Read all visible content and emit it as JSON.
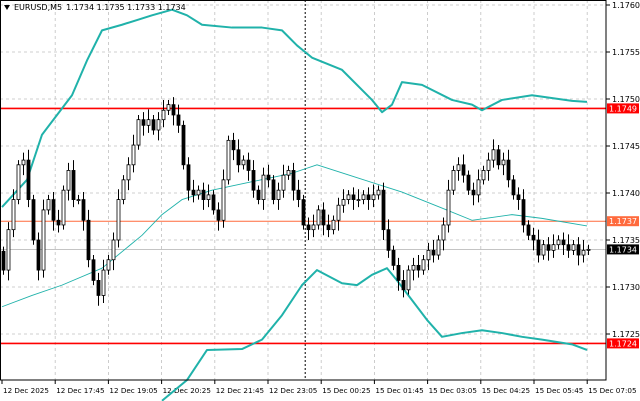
{
  "header": {
    "symbol": "EURUSD,M5",
    "ohlc": "1.1734 1.1735 1.1733 1.1734"
  },
  "colors": {
    "band": "#20b2aa",
    "level_red": "#ff0000",
    "level_orange": "#ff6a3d",
    "current_price": "#000000",
    "grid": "#c0c0c0"
  },
  "chart_data": {
    "type": "candlestick",
    "symbol": "EURUSD",
    "timeframe": "M5",
    "ylim": [
      1.172,
      1.1761
    ],
    "y_ticks": [
      "1.1760",
      "1.1755",
      "1.1750",
      "1.1745",
      "1.1740",
      "1.1735",
      "1.1730",
      "1.1725"
    ],
    "x_ticks": [
      "12 Dec 2025",
      "12 Dec 17:45",
      "12 Dec 19:05",
      "12 Dec 20:25",
      "12 Dec 21:45",
      "12 Dec 23:05",
      "15 Dec 00:25",
      "15 Dec 01:45",
      "15 Dec 03:05",
      "15 Dec 04:25",
      "15 Dec 05:45",
      "15 Dec 07:05"
    ],
    "grid": true,
    "closes": [
      1.17318,
      1.17361,
      1.17393,
      1.1743,
      1.17435,
      1.17393,
      1.1735,
      1.17318,
      1.17382,
      1.17393,
      1.17371,
      1.17366,
      1.17403,
      1.17424,
      1.17393,
      1.17393,
      1.17371,
      1.17329,
      1.17307,
      1.17291,
      1.17318,
      1.17329,
      1.1735,
      1.17393,
      1.17414,
      1.1743,
      1.17451,
      1.17478,
      1.17472,
      1.17478,
      1.17467,
      1.17478,
      1.17488,
      1.17494,
      1.17483,
      1.17472,
      1.1743,
      1.17403,
      1.17398,
      1.17403,
      1.17393,
      1.17398,
      1.17382,
      1.17371,
      1.17414,
      1.17456,
      1.17446,
      1.1743,
      1.17435,
      1.17424,
      1.17403,
      1.17393,
      1.17419,
      1.17414,
      1.17393,
      1.17403,
      1.17419,
      1.17424,
      1.17403,
      1.17393,
      1.17366,
      1.17361,
      1.17366,
      1.17382,
      1.17366,
      1.17361,
      1.17371,
      1.17387,
      1.17393,
      1.17398,
      1.17393,
      1.17393,
      1.17398,
      1.17393,
      1.17398,
      1.17403,
      1.17361,
      1.17339,
      1.17323,
      1.17307,
      1.17297,
      1.17318,
      1.17323,
      1.17318,
      1.17329,
      1.17339,
      1.17334,
      1.1735,
      1.17366,
      1.17403,
      1.17424,
      1.1743,
      1.17419,
      1.17403,
      1.17398,
      1.17414,
      1.17424,
      1.17435,
      1.17446,
      1.1743,
      1.17435,
      1.17414,
      1.17398,
      1.17393,
      1.17366,
      1.17355,
      1.1735,
      1.17334,
      1.17345,
      1.17339,
      1.17345,
      1.1735,
      1.17345,
      1.17339,
      1.17345,
      1.17334,
      1.17339,
      1.1734
    ],
    "bollinger": {
      "upper": [
        [
          0,
          1.17385
        ],
        [
          5,
          1.17414
        ],
        [
          8,
          1.17462
        ],
        [
          11,
          1.17483
        ],
        [
          14,
          1.17504
        ],
        [
          17,
          1.17541
        ],
        [
          20,
          1.17573
        ],
        [
          24,
          1.17579
        ],
        [
          27,
          1.17584
        ],
        [
          30,
          1.17589
        ],
        [
          34,
          1.17595
        ],
        [
          37,
          1.17589
        ],
        [
          40,
          1.17579
        ],
        [
          46,
          1.17576
        ],
        [
          52,
          1.17576
        ],
        [
          56,
          1.17573
        ],
        [
          59,
          1.17557
        ],
        [
          62,
          1.17544
        ],
        [
          68,
          1.17531
        ],
        [
          74,
          1.17499
        ],
        [
          76,
          1.17486
        ],
        [
          78,
          1.17494
        ],
        [
          80,
          1.17518
        ],
        [
          84,
          1.17515
        ],
        [
          90,
          1.17499
        ],
        [
          94,
          1.17494
        ],
        [
          96,
          1.17488
        ],
        [
          100,
          1.17499
        ],
        [
          106,
          1.17504
        ],
        [
          114,
          1.17498
        ],
        [
          117,
          1.17497
        ]
      ],
      "middle": [
        [
          0,
          1.17279
        ],
        [
          6,
          1.17291
        ],
        [
          12,
          1.17302
        ],
        [
          20,
          1.1732
        ],
        [
          28,
          1.17355
        ],
        [
          32,
          1.17377
        ],
        [
          36,
          1.17393
        ],
        [
          42,
          1.17403
        ],
        [
          50,
          1.17412
        ],
        [
          58,
          1.17421
        ],
        [
          63,
          1.1743
        ],
        [
          70,
          1.17418
        ],
        [
          80,
          1.17401
        ],
        [
          88,
          1.17384
        ],
        [
          94,
          1.17371
        ],
        [
          102,
          1.17377
        ],
        [
          108,
          1.17373
        ],
        [
          117,
          1.17365
        ]
      ],
      "lower": [
        [
          32,
          1.17179
        ],
        [
          37,
          1.17201
        ],
        [
          41,
          1.17233
        ],
        [
          48,
          1.17234
        ],
        [
          52,
          1.17244
        ],
        [
          56,
          1.1727
        ],
        [
          60,
          1.17302
        ],
        [
          63,
          1.17318
        ],
        [
          68,
          1.17304
        ],
        [
          71,
          1.17302
        ],
        [
          74,
          1.17313
        ],
        [
          77,
          1.1732
        ],
        [
          79,
          1.17307
        ],
        [
          82,
          1.17286
        ],
        [
          85,
          1.17265
        ],
        [
          88,
          1.17247
        ],
        [
          92,
          1.17251
        ],
        [
          96,
          1.17254
        ],
        [
          100,
          1.17251
        ],
        [
          104,
          1.17247
        ],
        [
          108,
          1.17244
        ],
        [
          114,
          1.17239
        ],
        [
          117,
          1.17233
        ]
      ]
    },
    "levels": [
      {
        "price": 1.1749,
        "label": "1.1749",
        "color": "#ff0000"
      },
      {
        "price": 1.1737,
        "label": "1.1737",
        "color": "#ff6a3d"
      },
      {
        "price": 1.1724,
        "label": "1.1724",
        "color": "#ff0000"
      }
    ],
    "current_price": {
      "price": 1.1734,
      "label": "1.1734"
    },
    "period_separator": "15 Dec 00:25"
  }
}
